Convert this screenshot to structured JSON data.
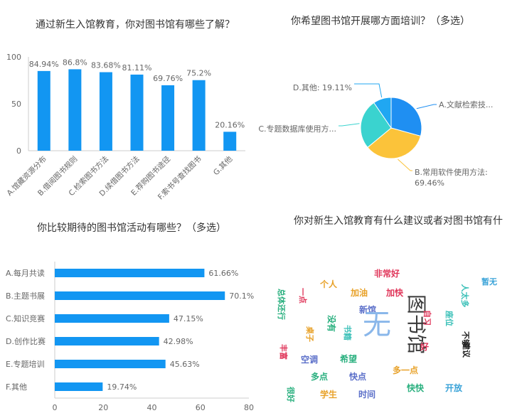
{
  "chart_data": [
    {
      "type": "bar",
      "title": "通过新生入馆教育，你对图书馆有哪些了解？",
      "categories": [
        "A.馆藏资源分布",
        "B.借阅图书规则",
        "C.检索图书方法",
        "D.续借图书方法",
        "E.荐购图书途径",
        "F.索书号查找图书",
        "G.其他"
      ],
      "values": [
        84.94,
        86.8,
        83.68,
        81.11,
        69.76,
        75.2,
        20.16
      ],
      "value_labels": [
        "84.94%",
        "86.8%",
        "83.68%",
        "81.11%",
        "69.76%",
        "75.2%",
        "20.16%"
      ],
      "ylim": [
        0,
        100
      ],
      "yticks": [
        "0",
        "50",
        "100"
      ],
      "color": "#1296f2",
      "grid": false
    },
    {
      "type": "pie",
      "title": "你希望图书馆开展哪方面培训？（多选）",
      "slices": [
        {
          "label": "A.文献检索技...",
          "value": 0.2929,
          "color": "#1f8ff2"
        },
        {
          "label": "B.常用软件使用方法: 69.46%",
          "value": 0.3473,
          "color": "#fbc33a"
        },
        {
          "label": "C.专题数据库使用方...",
          "value": 0.2643,
          "color": "#3ad3cf"
        },
        {
          "label": "D.其他: 19.11%",
          "value": 0.0955,
          "color": "#20a7f2"
        }
      ],
      "legend": "none"
    },
    {
      "type": "bar",
      "orientation": "horizontal",
      "title": "你比较期待的图书馆活动有哪些？（多选）",
      "categories": [
        "A.每月共读",
        "B.主题书展",
        "C.知识竞赛",
        "D.创作比赛",
        "E.专题培训",
        "F.其他"
      ],
      "values": [
        61.66,
        70.1,
        47.15,
        42.98,
        45.63,
        19.74
      ],
      "value_labels": [
        "61.66%",
        "70.1%",
        "47.15%",
        "42.98%",
        "45.63%",
        "19.74%"
      ],
      "xlim": [
        0,
        80
      ],
      "xticks": [
        "0",
        "20",
        "40",
        "60",
        "80"
      ],
      "color": "#1296f2",
      "grid": false
    }
  ],
  "wordcloud": {
    "title": "你对新生入馆教育有什么建议或者对图书馆有什",
    "words": [
      {
        "text": "非常好",
        "color": "#e0365a",
        "size": 12,
        "vertical": false
      },
      {
        "text": "暂无",
        "color": "#3aa3d8",
        "size": 11,
        "vertical": false
      },
      {
        "text": "加油",
        "color": "#e8a22a",
        "size": 12,
        "vertical": false
      },
      {
        "text": "加快",
        "color": "#e0365a",
        "size": 12,
        "vertical": false
      },
      {
        "text": "个人",
        "color": "#e8a22a",
        "size": 12,
        "vertical": false
      },
      {
        "text": "一点",
        "color": "#e0365a",
        "size": 11,
        "vertical": true
      },
      {
        "text": "总体还行",
        "color": "#2ab07f",
        "size": 11,
        "vertical": true
      },
      {
        "text": "新馆",
        "color": "#5b6fc9",
        "size": 12,
        "vertical": false
      },
      {
        "text": "图书馆",
        "color": "#3a3a3a",
        "size": 28,
        "vertical": true
      },
      {
        "text": "无",
        "color": "#8ab7ea",
        "size": 40,
        "vertical": false
      },
      {
        "text": "没有",
        "color": "#2ab07f",
        "size": 12,
        "vertical": true
      },
      {
        "text": "桌子",
        "color": "#e8a22a",
        "size": 11,
        "vertical": true
      },
      {
        "text": "书籍",
        "color": "#3ac0b8",
        "size": 11,
        "vertical": true
      },
      {
        "text": "座位",
        "color": "#3ac0b8",
        "size": 11,
        "vertical": true
      },
      {
        "text": "人太多",
        "color": "#3ac0b8",
        "size": 11,
        "vertical": true
      },
      {
        "text": "自习",
        "color": "#e0365a",
        "size": 11,
        "vertical": true
      },
      {
        "text": "好",
        "color": "#e0365a",
        "size": 12,
        "vertical": false
      },
      {
        "text": "建议",
        "color": "#222222",
        "size": 11,
        "vertical": true
      },
      {
        "text": "不够",
        "color": "#222222",
        "size": 11,
        "vertical": true
      },
      {
        "text": "空调",
        "color": "#5b6fc9",
        "size": 12,
        "vertical": false
      },
      {
        "text": "希望",
        "color": "#2ab07f",
        "size": 12,
        "vertical": false
      },
      {
        "text": "丰富",
        "color": "#e0365a",
        "size": 11,
        "vertical": true
      },
      {
        "text": "多一点",
        "color": "#e8a22a",
        "size": 12,
        "vertical": false
      },
      {
        "text": "多点",
        "color": "#2ab07f",
        "size": 12,
        "vertical": false
      },
      {
        "text": "快点",
        "color": "#5b6fc9",
        "size": 12,
        "vertical": false
      },
      {
        "text": "快快",
        "color": "#2ab07f",
        "size": 12,
        "vertical": false
      },
      {
        "text": "开放",
        "color": "#3aa3d8",
        "size": 12,
        "vertical": false
      },
      {
        "text": "学生",
        "color": "#e8a22a",
        "size": 12,
        "vertical": false
      },
      {
        "text": "时间",
        "color": "#5b6fc9",
        "size": 12,
        "vertical": false
      },
      {
        "text": "很好",
        "color": "#2ab07f",
        "size": 11,
        "vertical": true
      }
    ]
  }
}
